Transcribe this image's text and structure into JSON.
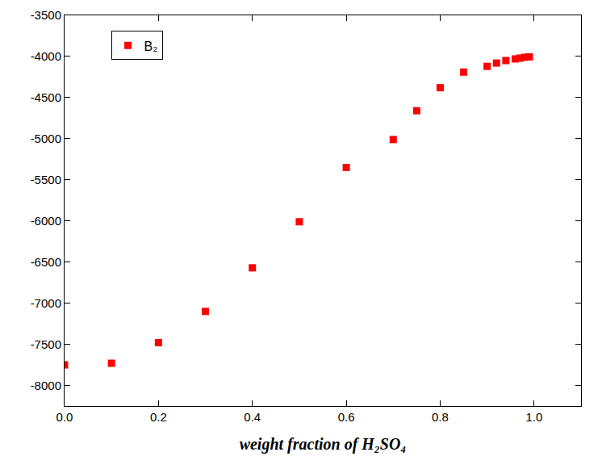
{
  "chart_data": {
    "type": "scatter",
    "x_label": "weight fraction of H₂SO₄",
    "x": [
      0,
      0.1,
      0.2,
      0.3,
      0.4,
      0.5,
      0.6,
      0.7,
      0.75,
      0.8,
      0.85,
      0.9,
      0.92,
      0.94,
      0.96,
      0.97,
      0.98,
      0.99
    ],
    "series": [
      {
        "name": "B₂",
        "color": "#ff0000",
        "marker": "square",
        "values": [
          -7750,
          -7730,
          -7480,
          -7100,
          -6570,
          -6010,
          -5350,
          -5010,
          -4660,
          -4380,
          -4190,
          -4120,
          -4080,
          -4050,
          -4030,
          -4020,
          -4010,
          -4005
        ]
      }
    ],
    "xlim": [
      0,
      1.1
    ],
    "xticks": [
      {
        "value": 0,
        "label": "0.0"
      },
      {
        "value": 0.2,
        "label": "0.2"
      },
      {
        "value": 0.4,
        "label": "0.4"
      },
      {
        "value": 0.6,
        "label": "0.6"
      },
      {
        "value": 0.8,
        "label": "0.8"
      },
      {
        "value": 1,
        "label": "1.0"
      }
    ],
    "ylim": [
      -8250,
      -3500
    ],
    "yticks": [
      -8000,
      -7500,
      -7000,
      -6500,
      -6000,
      -5500,
      -5000,
      -4500,
      -4000,
      -3500
    ],
    "grid": false,
    "legend": "top left"
  }
}
